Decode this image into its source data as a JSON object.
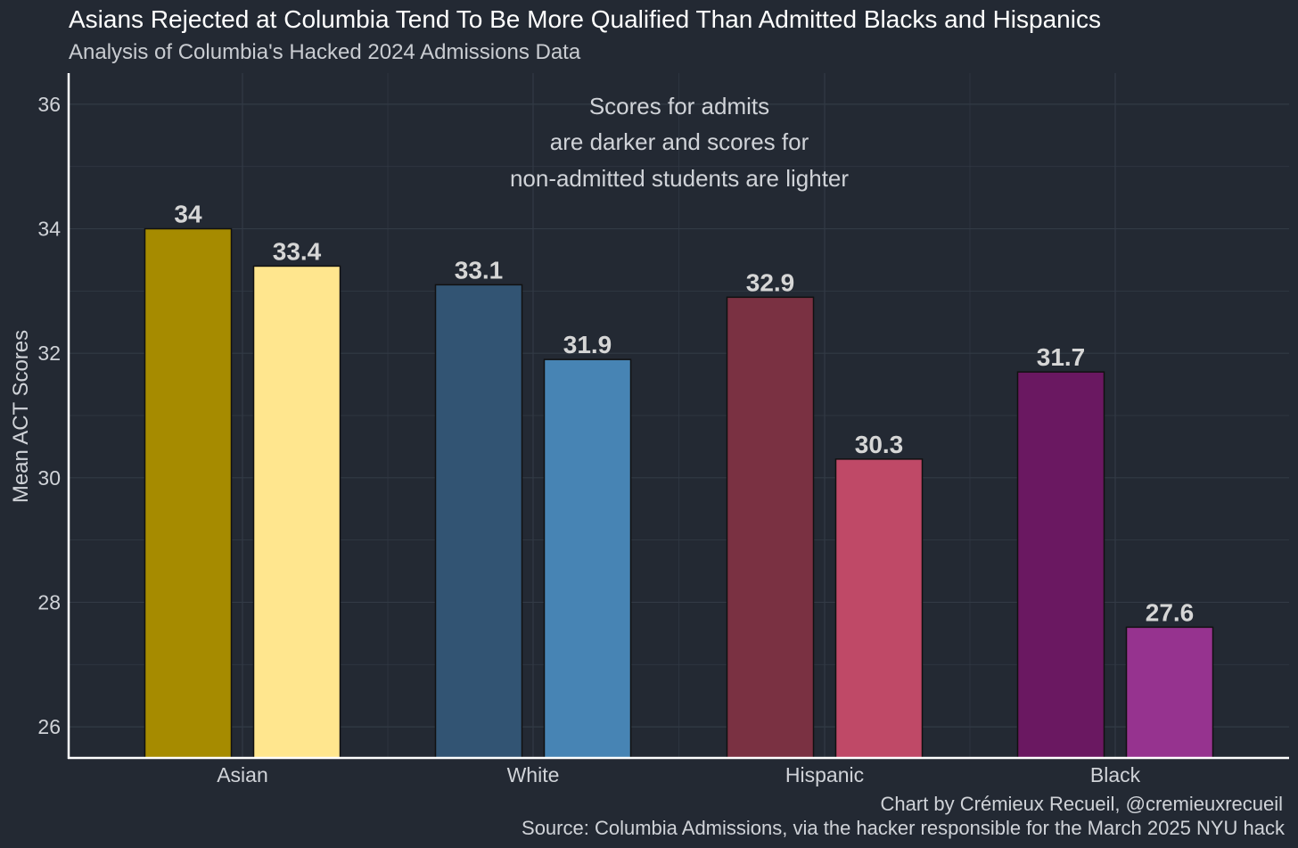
{
  "chart_data": {
    "type": "bar",
    "title": "Asians Rejected at Columbia Tend To Be More Qualified Than Admitted Blacks and Hispanics",
    "subtitle": "Analysis of Columbia's Hacked 2024 Admissions Data",
    "xlabel": "",
    "ylabel": "Mean ACT Scores",
    "ylim": [
      25.5,
      36.5
    ],
    "yticks": [
      26,
      28,
      30,
      32,
      34,
      36
    ],
    "ytick_labels": [
      "26",
      "28",
      "30",
      "32",
      "34",
      "36"
    ],
    "grid": true,
    "legend": "none",
    "categories": [
      "Asian",
      "White",
      "Hispanic",
      "Black"
    ],
    "series": [
      {
        "name": "Admitted",
        "values": [
          34.0,
          33.1,
          32.9,
          31.7
        ],
        "labels": [
          "34",
          "33.1",
          "32.9",
          "31.7"
        ],
        "colors": [
          "#a68b00",
          "#325473",
          "#7a3142",
          "#6a1861"
        ]
      },
      {
        "name": "Not admitted",
        "values": [
          33.4,
          31.9,
          30.3,
          27.6
        ],
        "labels": [
          "33.4",
          "31.9",
          "30.3",
          "27.6"
        ],
        "colors": [
          "#ffe68e",
          "#4784b4",
          "#bf4967",
          "#96338f"
        ]
      }
    ],
    "annotation": [
      "Scores for admits",
      "are darker and scores for",
      "non-admitted students are lighter"
    ],
    "caption": [
      "Chart by Crémieux Recueil, @cremieuxrecueil",
      "Source: Columbia Admissions, via the hacker responsible for the March 2025 NYU hack"
    ]
  },
  "colors": {
    "background": "#232933",
    "grid": "#323a45",
    "axis": "#ffffff",
    "bar_outline": "#111111"
  }
}
